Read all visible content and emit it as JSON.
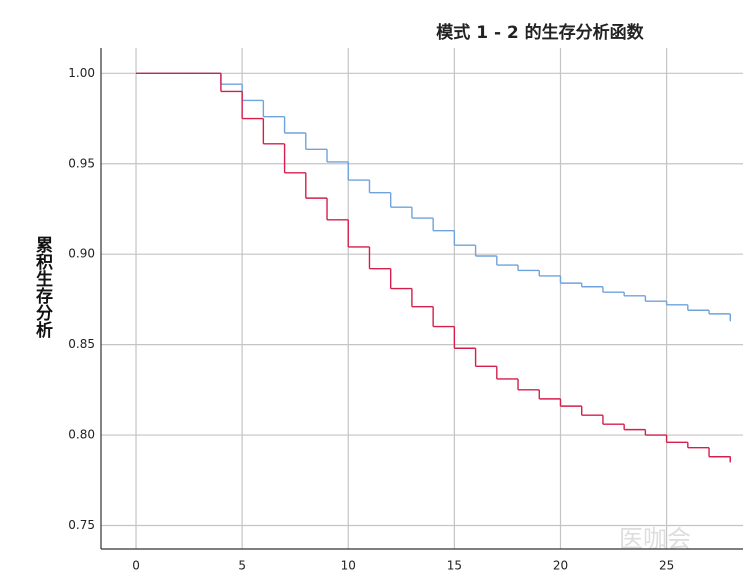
{
  "chart_data": {
    "type": "line",
    "step": "post",
    "title": "模式 1 - 2 的生存分析函数",
    "y_label": "累积生存分析",
    "watermark": "医咖会",
    "x": [
      0,
      1,
      2,
      3,
      4,
      5,
      6,
      7,
      8,
      9,
      10,
      11,
      12,
      13,
      14,
      15,
      16,
      17,
      18,
      19,
      20,
      21,
      22,
      23,
      24,
      25,
      26,
      27,
      28
    ],
    "series": [
      {
        "color": "#6fa3dc",
        "values": [
          1.0,
          1.0,
          1.0,
          1.0,
          0.994,
          0.985,
          0.976,
          0.967,
          0.958,
          0.951,
          0.941,
          0.934,
          0.926,
          0.92,
          0.913,
          0.905,
          0.899,
          0.894,
          0.891,
          0.888,
          0.884,
          0.882,
          0.879,
          0.877,
          0.874,
          0.872,
          0.869,
          0.867,
          0.864
        ]
      },
      {
        "color": "#d41f4c",
        "values": [
          1.0,
          1.0,
          1.0,
          1.0,
          0.99,
          0.975,
          0.961,
          0.945,
          0.931,
          0.919,
          0.904,
          0.892,
          0.881,
          0.871,
          0.86,
          0.848,
          0.838,
          0.831,
          0.825,
          0.82,
          0.816,
          0.811,
          0.806,
          0.803,
          0.8,
          0.796,
          0.793,
          0.788,
          0.786
        ]
      }
    ],
    "xlim": [
      -1.65,
      28.6
    ],
    "xticks": [
      0,
      5,
      10,
      15,
      20,
      25
    ],
    "ylim": [
      0.737,
      1.014
    ],
    "yticks": [
      {
        "value": 0.75,
        "label": "0.75"
      },
      {
        "value": 0.8,
        "label": "0.80"
      },
      {
        "value": 0.85,
        "label": "0.85"
      },
      {
        "value": 0.9,
        "label": "0.90"
      },
      {
        "value": 0.95,
        "label": "0.95"
      },
      {
        "value": 1.0,
        "label": "1.00"
      }
    ],
    "grid": true
  }
}
